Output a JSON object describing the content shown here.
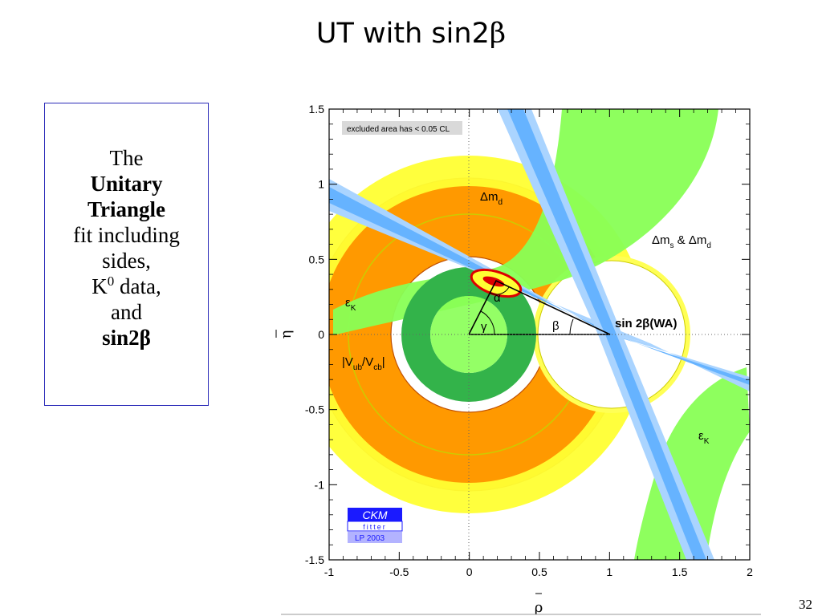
{
  "slide": {
    "title_text": "UT with sin2",
    "title_greek": "β",
    "page_number": "32"
  },
  "textbox": {
    "line1": "The",
    "line2": "Unitary",
    "line3": "Triangle",
    "line4": "fit including",
    "line5": "sides,",
    "line6_base": "K",
    "line6_sup": "0",
    "line6_rest": " data,",
    "line7": "and",
    "line8": "sin2β"
  },
  "chart_data": {
    "type": "scatter",
    "xlabel": "ρ",
    "ylabel": "η",
    "xlim": [
      -1,
      2
    ],
    "ylim": [
      -1.5,
      1.5
    ],
    "x_ticks": [
      "-1",
      "-0.5",
      "0",
      "0.5",
      "1",
      "1.5",
      "2"
    ],
    "y_ticks": [
      "1.5",
      "1",
      "0.5",
      "0",
      "-0.5",
      "-1",
      "-1.5"
    ],
    "notice": "excluded area has < 0.05 CL",
    "logo": {
      "line1": "CKM",
      "line2": "fitter",
      "line3": "LP 2003"
    },
    "labels": {
      "dmd_main": "Δm",
      "dmd_sub": "d",
      "dms_a": "Δm",
      "dms_a_sub": "s",
      "dms_amp": " & Δm",
      "dms_b_sub": "d",
      "epsk1_main": "ε",
      "epsk1_sub": "K",
      "epsk2_main": "ε",
      "epsk2_sub": "K",
      "vub_a": "|V",
      "vub_sub1": "ub",
      "vub_b": "/V",
      "vub_sub2": "cb",
      "vub_c": "|",
      "sin2b": "sin 2β(WA)",
      "alpha": "α",
      "beta": "β",
      "gamma": "γ"
    },
    "apex": {
      "rho": 0.2,
      "eta": 0.36
    },
    "colors": {
      "dmd_yellow": "#ffff33",
      "dms_orange": "#ff9900",
      "vub_green": "#33b34a",
      "epsk_green": "#88ff55",
      "sin2b_blue": "#66b3ff",
      "sin2b_light": "#aad4ff",
      "fit_red": "#dd0000",
      "logo_blue": "#1a1aff"
    }
  }
}
